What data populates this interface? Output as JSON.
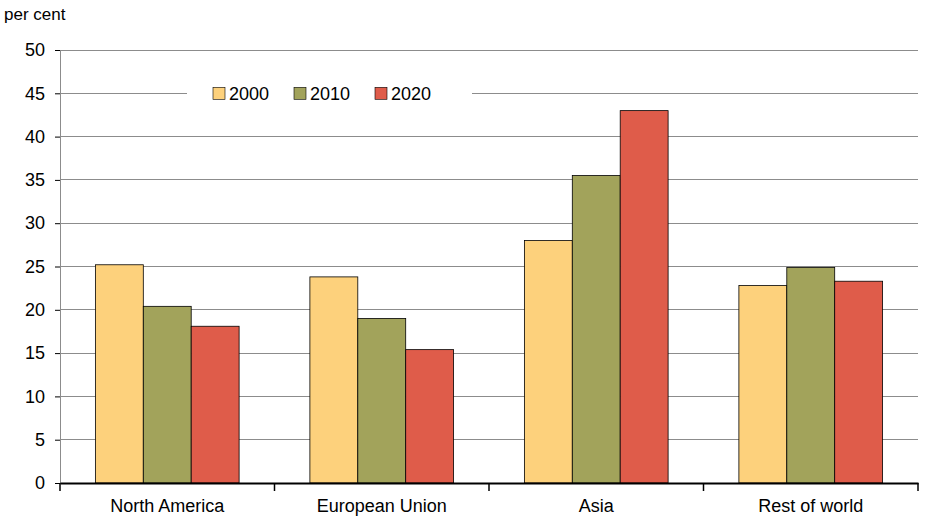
{
  "chart_data": {
    "type": "bar",
    "y_label": "per cent",
    "categories": [
      "North America",
      "European Union",
      "Asia",
      "Rest of world"
    ],
    "series": [
      {
        "name": "2000",
        "color": "#fdd17c",
        "values": [
          25.2,
          23.8,
          28.0,
          22.8
        ]
      },
      {
        "name": "2010",
        "color": "#a2a35b",
        "values": [
          20.4,
          19.0,
          35.5,
          24.9
        ]
      },
      {
        "name": "2020",
        "color": "#df5c4a",
        "values": [
          18.1,
          15.4,
          43.0,
          23.3
        ]
      }
    ],
    "ylim": [
      0,
      50
    ],
    "yticks": [
      0,
      5,
      10,
      15,
      20,
      25,
      30,
      35,
      40,
      45,
      50
    ],
    "grid": true,
    "legend": "top"
  }
}
